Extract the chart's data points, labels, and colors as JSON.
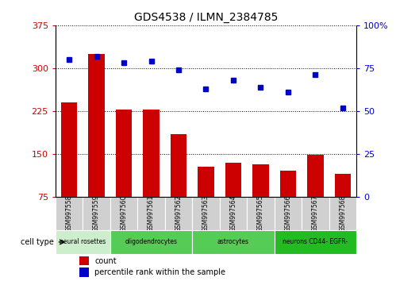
{
  "title": "GDS4538 / ILMN_2384785",
  "samples": [
    "GSM997558",
    "GSM997559",
    "GSM997560",
    "GSM997561",
    "GSM997562",
    "GSM997563",
    "GSM997564",
    "GSM997565",
    "GSM997566",
    "GSM997567",
    "GSM997568"
  ],
  "counts": [
    240,
    325,
    228,
    228,
    185,
    128,
    135,
    132,
    120,
    148,
    115
  ],
  "percentiles": [
    80,
    82,
    78,
    79,
    74,
    63,
    68,
    64,
    61,
    71,
    52
  ],
  "ylim_left": [
    75,
    375
  ],
  "yticks_left": [
    75,
    150,
    225,
    300,
    375
  ],
  "ylim_right": [
    0,
    100
  ],
  "yticks_right": [
    0,
    25,
    50,
    75,
    100
  ],
  "bar_color": "#cc0000",
  "dot_color": "#0000cc",
  "left_tick_color": "#cc0000",
  "right_tick_color": "#0000cc",
  "cell_types": [
    {
      "label": "neural rosettes",
      "start": 0,
      "end": 2,
      "color": "#cceecc"
    },
    {
      "label": "oligodendrocytes",
      "start": 2,
      "end": 5,
      "color": "#55cc55"
    },
    {
      "label": "astrocytes",
      "start": 5,
      "end": 8,
      "color": "#55cc55"
    },
    {
      "label": "neurons CD44- EGFR-",
      "start": 8,
      "end": 11,
      "color": "#22bb22"
    }
  ],
  "legend_count_label": "count",
  "legend_pct_label": "percentile rank within the sample",
  "xlabel_cell_type": "cell type"
}
